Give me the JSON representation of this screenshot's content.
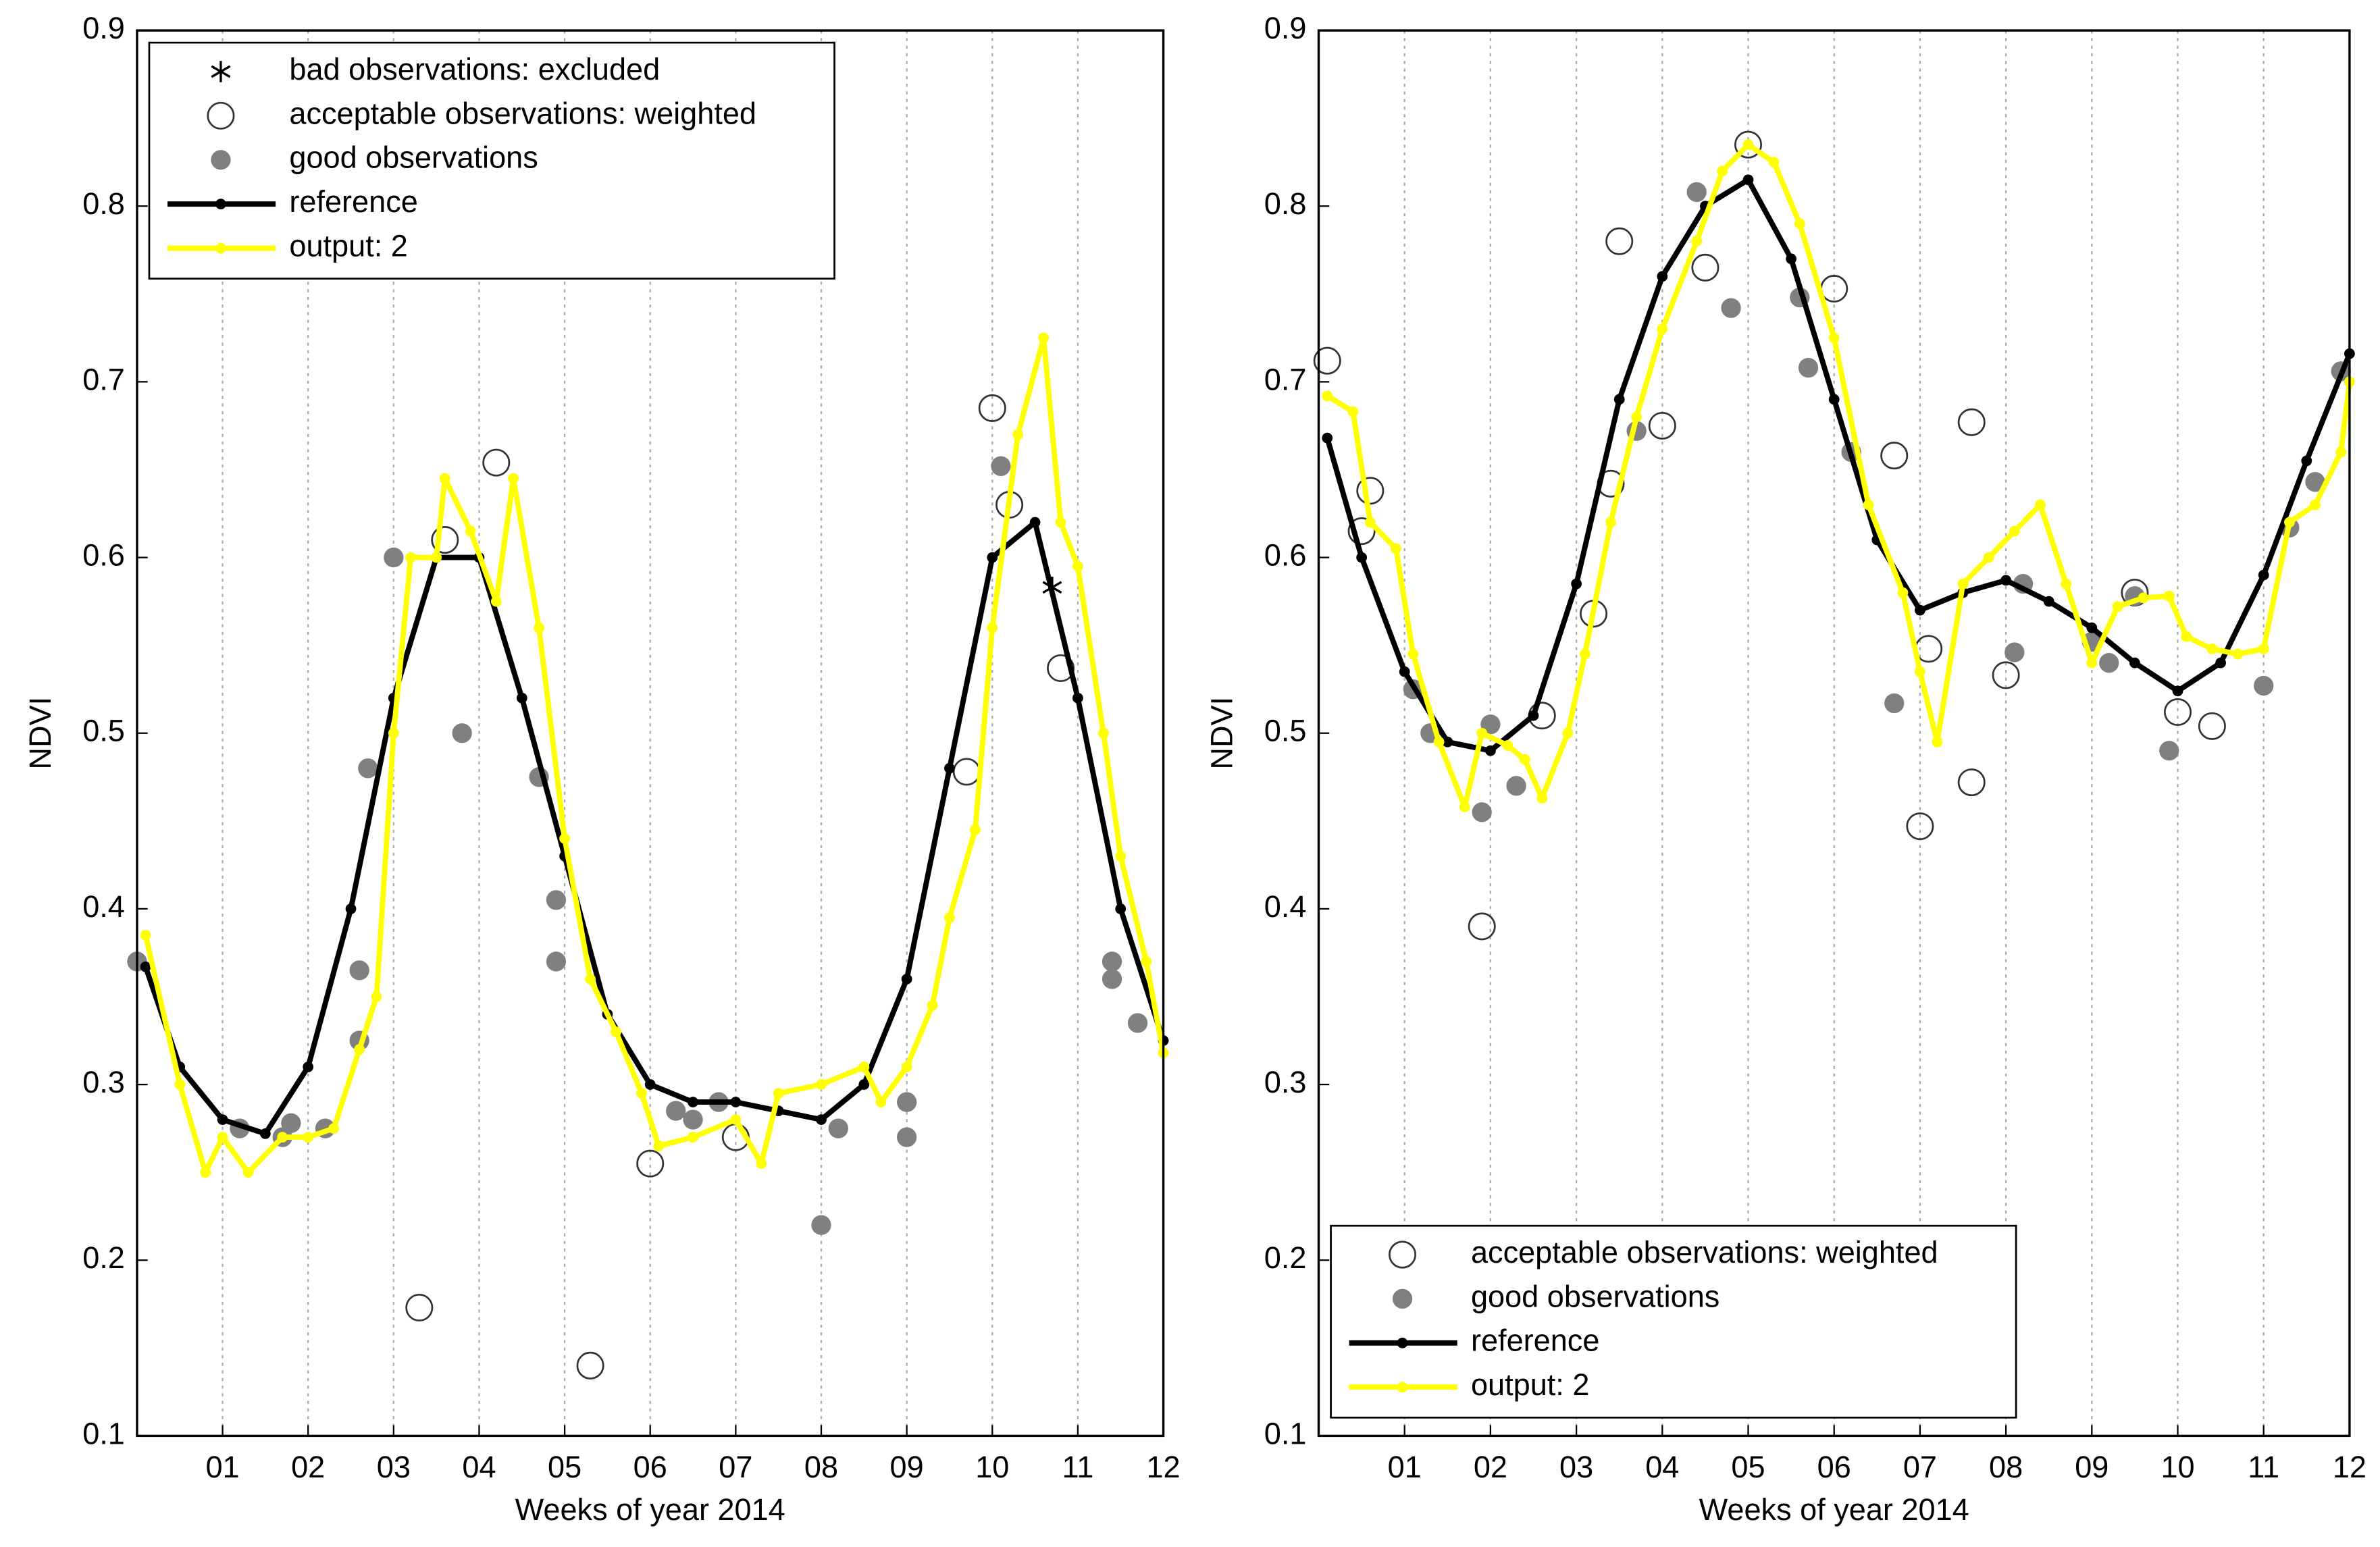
{
  "chart_data": [
    {
      "type": "line",
      "xlabel": "Weeks of year 2014",
      "ylabel": "NDVI",
      "xlim": [
        0,
        12
      ],
      "ylim": [
        0.1,
        0.9
      ],
      "xticks": [
        {
          "value": 1,
          "label": "01"
        },
        {
          "value": 2,
          "label": "02"
        },
        {
          "value": 3,
          "label": "03"
        },
        {
          "value": 4,
          "label": "04"
        },
        {
          "value": 5,
          "label": "05"
        },
        {
          "value": 6,
          "label": "06"
        },
        {
          "value": 7,
          "label": "07"
        },
        {
          "value": 8,
          "label": "08"
        },
        {
          "value": 9,
          "label": "09"
        },
        {
          "value": 10,
          "label": "10"
        },
        {
          "value": 11,
          "label": "11"
        },
        {
          "value": 12,
          "label": "12"
        }
      ],
      "yticks": [
        0.1,
        0.2,
        0.3,
        0.4,
        0.5,
        0.6,
        0.7,
        0.8,
        0.9
      ],
      "grid": "x",
      "legend": "upper left",
      "series": [
        {
          "name": "bad observations: excluded",
          "type": "scatter",
          "marker": "star",
          "color": "#000000",
          "x": [
            10.7
          ],
          "values": [
            0.583
          ]
        },
        {
          "name": "acceptable observations: weighted",
          "type": "scatter",
          "marker": "open-circle",
          "color": "#333333",
          "x": [
            3.3,
            3.6,
            4.2,
            5.3,
            6.0,
            7.0,
            9.7,
            10.0,
            10.2,
            10.8
          ],
          "values": [
            0.173,
            0.61,
            0.654,
            0.14,
            0.255,
            0.27,
            0.478,
            0.685,
            0.63,
            0.537
          ]
        },
        {
          "name": "good observations",
          "type": "scatter",
          "marker": "filled-circle",
          "color": "#808080",
          "x": [
            0.0,
            1.2,
            1.7,
            1.8,
            2.2,
            2.6,
            2.6,
            2.7,
            3.0,
            3.8,
            4.7,
            4.9,
            4.9,
            6.3,
            6.5,
            6.8,
            8.0,
            8.2,
            9.0,
            9.0,
            10.1,
            11.4,
            11.4,
            11.7
          ],
          "values": [
            0.37,
            0.275,
            0.27,
            0.278,
            0.275,
            0.325,
            0.365,
            0.48,
            0.6,
            0.5,
            0.475,
            0.405,
            0.37,
            0.285,
            0.28,
            0.29,
            0.22,
            0.275,
            0.29,
            0.27,
            0.652,
            0.37,
            0.36,
            0.335
          ]
        },
        {
          "name": "reference",
          "type": "line",
          "color": "#000000",
          "x": [
            0.1,
            0.5,
            1.0,
            1.5,
            2.0,
            2.5,
            3.0,
            3.5,
            4.0,
            4.5,
            5.0,
            5.5,
            6.0,
            6.5,
            7.0,
            7.5,
            8.0,
            8.5,
            9.0,
            9.5,
            10.0,
            10.5,
            11.0,
            11.5,
            12.0
          ],
          "values": [
            0.367,
            0.31,
            0.28,
            0.272,
            0.31,
            0.4,
            0.52,
            0.6,
            0.6,
            0.52,
            0.43,
            0.34,
            0.3,
            0.29,
            0.29,
            0.285,
            0.28,
            0.3,
            0.36,
            0.48,
            0.6,
            0.62,
            0.52,
            0.4,
            0.325
          ]
        },
        {
          "name": "output: 2",
          "type": "line",
          "color": "#ffff00",
          "x": [
            0.1,
            0.5,
            0.8,
            1.0,
            1.3,
            1.7,
            2.0,
            2.3,
            2.6,
            2.8,
            3.0,
            3.2,
            3.5,
            3.6,
            3.9,
            4.2,
            4.4,
            4.7,
            5.0,
            5.3,
            5.6,
            5.9,
            6.1,
            6.5,
            7.0,
            7.3,
            7.5,
            8.0,
            8.5,
            8.7,
            9.0,
            9.3,
            9.5,
            9.8,
            10.0,
            10.3,
            10.6,
            10.8,
            11.0,
            11.3,
            11.5,
            11.8,
            12.0
          ],
          "values": [
            0.385,
            0.3,
            0.25,
            0.27,
            0.25,
            0.27,
            0.27,
            0.275,
            0.32,
            0.35,
            0.5,
            0.6,
            0.6,
            0.645,
            0.615,
            0.575,
            0.645,
            0.56,
            0.44,
            0.36,
            0.33,
            0.295,
            0.265,
            0.27,
            0.28,
            0.255,
            0.295,
            0.3,
            0.31,
            0.29,
            0.31,
            0.345,
            0.395,
            0.445,
            0.56,
            0.67,
            0.725,
            0.62,
            0.595,
            0.5,
            0.43,
            0.37,
            0.318
          ]
        }
      ]
    },
    {
      "type": "line",
      "xlabel": "Weeks of year 2014",
      "ylabel": "NDVI",
      "xlim": [
        0,
        12
      ],
      "ylim": [
        0.1,
        0.9
      ],
      "xticks": [
        {
          "value": 1,
          "label": "01"
        },
        {
          "value": 2,
          "label": "02"
        },
        {
          "value": 3,
          "label": "03"
        },
        {
          "value": 4,
          "label": "04"
        },
        {
          "value": 5,
          "label": "05"
        },
        {
          "value": 6,
          "label": "06"
        },
        {
          "value": 7,
          "label": "07"
        },
        {
          "value": 8,
          "label": "08"
        },
        {
          "value": 9,
          "label": "09"
        },
        {
          "value": 10,
          "label": "10"
        },
        {
          "value": 11,
          "label": "11"
        },
        {
          "value": 12,
          "label": "12"
        }
      ],
      "yticks": [
        0.1,
        0.2,
        0.3,
        0.4,
        0.5,
        0.6,
        0.7,
        0.8,
        0.9
      ],
      "grid": "x",
      "legend": "lower left",
      "series": [
        {
          "name": "acceptable observations: weighted",
          "type": "scatter",
          "marker": "open-circle",
          "color": "#333333",
          "x": [
            0.1,
            0.5,
            0.6,
            1.9,
            2.6,
            3.2,
            3.4,
            3.5,
            4.0,
            4.5,
            5.0,
            6.0,
            6.7,
            7.0,
            7.1,
            7.6,
            7.6,
            8.0,
            9.5,
            10.0,
            10.4
          ],
          "values": [
            0.712,
            0.615,
            0.638,
            0.39,
            0.51,
            0.568,
            0.642,
            0.78,
            0.675,
            0.765,
            0.835,
            0.753,
            0.658,
            0.447,
            0.548,
            0.677,
            0.472,
            0.533,
            0.58,
            0.512,
            0.504
          ]
        },
        {
          "name": "good observations",
          "type": "scatter",
          "marker": "filled-circle",
          "color": "#808080",
          "x": [
            1.1,
            1.3,
            1.9,
            2.0,
            2.3,
            3.7,
            4.4,
            4.8,
            5.6,
            5.7,
            6.2,
            6.7,
            8.1,
            8.2,
            9.0,
            9.2,
            9.5,
            9.9,
            11.0,
            11.3,
            11.6,
            11.9
          ],
          "values": [
            0.525,
            0.5,
            0.455,
            0.505,
            0.47,
            0.672,
            0.808,
            0.742,
            0.748,
            0.708,
            0.66,
            0.517,
            0.546,
            0.585,
            0.552,
            0.54,
            0.578,
            0.49,
            0.527,
            0.617,
            0.643,
            0.706
          ]
        },
        {
          "name": "reference",
          "type": "line",
          "color": "#000000",
          "x": [
            0.1,
            0.5,
            1.0,
            1.5,
            2.0,
            2.5,
            3.0,
            3.5,
            4.0,
            4.5,
            5.0,
            5.5,
            6.0,
            6.5,
            7.0,
            7.5,
            8.0,
            8.5,
            9.0,
            9.5,
            10.0,
            10.5,
            11.0,
            11.5,
            12.0
          ],
          "values": [
            0.668,
            0.6,
            0.535,
            0.495,
            0.49,
            0.51,
            0.585,
            0.69,
            0.76,
            0.8,
            0.815,
            0.77,
            0.69,
            0.61,
            0.57,
            0.58,
            0.587,
            0.575,
            0.56,
            0.54,
            0.524,
            0.54,
            0.59,
            0.655,
            0.716
          ]
        },
        {
          "name": "output: 2",
          "type": "line",
          "color": "#ffff00",
          "x": [
            0.1,
            0.4,
            0.6,
            0.9,
            1.1,
            1.4,
            1.7,
            1.9,
            2.2,
            2.4,
            2.6,
            2.9,
            3.1,
            3.4,
            3.7,
            4.0,
            4.4,
            4.7,
            5.0,
            5.3,
            5.6,
            6.0,
            6.4,
            6.8,
            7.0,
            7.2,
            7.5,
            7.8,
            8.1,
            8.4,
            8.7,
            9.0,
            9.3,
            9.6,
            9.9,
            10.1,
            10.4,
            10.7,
            11.0,
            11.3,
            11.6,
            11.9,
            12.0
          ],
          "values": [
            0.692,
            0.683,
            0.62,
            0.605,
            0.545,
            0.495,
            0.458,
            0.5,
            0.493,
            0.485,
            0.463,
            0.5,
            0.545,
            0.62,
            0.68,
            0.73,
            0.78,
            0.82,
            0.835,
            0.825,
            0.79,
            0.725,
            0.63,
            0.58,
            0.535,
            0.495,
            0.585,
            0.6,
            0.615,
            0.63,
            0.585,
            0.54,
            0.572,
            0.577,
            0.578,
            0.555,
            0.548,
            0.545,
            0.548,
            0.62,
            0.63,
            0.66,
            0.7
          ]
        }
      ]
    }
  ]
}
